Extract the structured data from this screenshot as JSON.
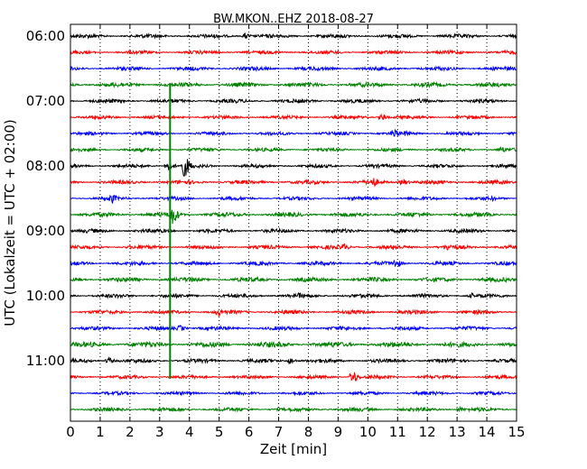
{
  "chart_data": {
    "type": "line",
    "title": "BW.MKON..EHZ 2018-08-27",
    "xlabel": "Zeit  [min]",
    "ylabel": "UTC (Lokalzeit = UTC + 02:00)",
    "xlim": [
      0,
      15
    ],
    "x_ticks": [
      "0",
      "1",
      "2",
      "3",
      "4",
      "5",
      "6",
      "7",
      "8",
      "9",
      "10",
      "11",
      "12",
      "13",
      "14",
      "15"
    ],
    "y_tick_labels": [
      "06:00",
      "07:00",
      "08:00",
      "09:00",
      "10:00",
      "11:00"
    ],
    "trace_interval_min": 15,
    "start_time": "06:00",
    "trace_count": 24,
    "trace_colors": [
      "#000000",
      "#ff0000",
      "#0000ff",
      "#008000"
    ],
    "grid": "dotted vertical at each minute",
    "traces": [
      {
        "start": "06:00",
        "amp": 2.2,
        "events": [
          {
            "t": 5.9,
            "a": 4
          }
        ]
      },
      {
        "start": "06:15",
        "amp": 2.0,
        "events": []
      },
      {
        "start": "06:30",
        "amp": 2.2,
        "events": []
      },
      {
        "start": "06:45",
        "amp": 2.5,
        "events": []
      },
      {
        "start": "07:00",
        "amp": 2.2,
        "events": []
      },
      {
        "start": "07:15",
        "amp": 2.0,
        "events": [
          {
            "t": 10.5,
            "a": 4
          }
        ]
      },
      {
        "start": "07:30",
        "amp": 2.0,
        "events": [
          {
            "t": 10.9,
            "a": 6
          },
          {
            "t": 11.3,
            "a": 4
          }
        ]
      },
      {
        "start": "07:45",
        "amp": 2.0,
        "events": [
          {
            "t": 14.5,
            "a": 4
          }
        ]
      },
      {
        "start": "08:00",
        "amp": 2.0,
        "events": [
          {
            "t": 3.3,
            "a": 7
          },
          {
            "t": 3.85,
            "a": 14
          },
          {
            "t": 10.2,
            "a": 3
          }
        ]
      },
      {
        "start": "08:15",
        "amp": 2.2,
        "events": [
          {
            "t": 10.2,
            "a": 6
          },
          {
            "t": 11.2,
            "a": 4
          }
        ]
      },
      {
        "start": "08:30",
        "amp": 2.0,
        "events": [
          {
            "t": 1.4,
            "a": 6
          },
          {
            "t": 14.2,
            "a": 3
          }
        ]
      },
      {
        "start": "08:45",
        "amp": 2.5,
        "events": [
          {
            "t": 3.45,
            "a": 12
          }
        ]
      },
      {
        "start": "09:00",
        "amp": 2.2,
        "events": []
      },
      {
        "start": "09:15",
        "amp": 2.2,
        "events": [
          {
            "t": 9.2,
            "a": 5
          },
          {
            "t": 10.9,
            "a": 4
          },
          {
            "t": 12.7,
            "a": 5
          }
        ]
      },
      {
        "start": "09:30",
        "amp": 2.2,
        "events": [
          {
            "t": 10.95,
            "a": 6
          }
        ]
      },
      {
        "start": "09:45",
        "amp": 2.5,
        "events": []
      },
      {
        "start": "10:00",
        "amp": 2.2,
        "events": [
          {
            "t": 7.7,
            "a": 4
          },
          {
            "t": 13.5,
            "a": 3
          }
        ]
      },
      {
        "start": "10:15",
        "amp": 2.2,
        "events": [
          {
            "t": 5.0,
            "a": 5
          }
        ]
      },
      {
        "start": "10:30",
        "amp": 2.2,
        "events": [
          {
            "t": 3.7,
            "a": 4
          }
        ]
      },
      {
        "start": "10:45",
        "amp": 3.0,
        "events": []
      },
      {
        "start": "11:00",
        "amp": 2.2,
        "events": [
          {
            "t": 1.3,
            "a": 4
          },
          {
            "t": 7.4,
            "a": 4
          }
        ]
      },
      {
        "start": "11:15",
        "amp": 2.0,
        "events": [
          {
            "t": 9.5,
            "a": 8
          }
        ]
      },
      {
        "start": "11:30",
        "amp": 2.0,
        "events": []
      },
      {
        "start": "11:45",
        "amp": 2.2,
        "events": [
          {
            "t": 13.1,
            "a": 3
          }
        ]
      }
    ],
    "marker": {
      "t": 3.35,
      "color": "#008000",
      "from": "06:45",
      "to": "11:15"
    }
  }
}
